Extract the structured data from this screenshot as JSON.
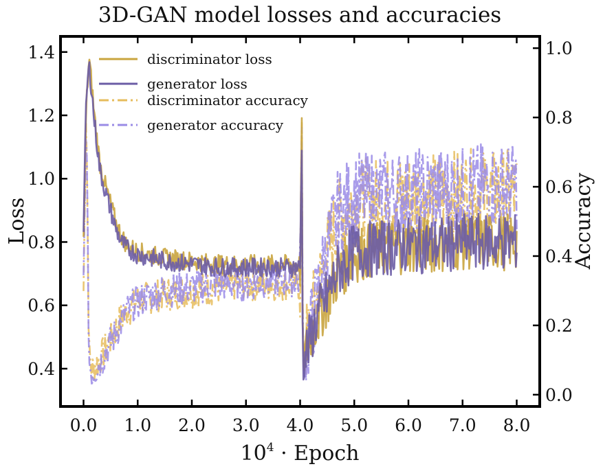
{
  "chart_data": {
    "type": "line",
    "title": "3D-GAN model losses and accuracies",
    "xlabel": {
      "base": "10",
      "exponent": "4",
      "rest": " · Epoch"
    },
    "ylabel_left": "Loss",
    "ylabel_right": "Accuracy",
    "xlim": [
      -0.4,
      8.4
    ],
    "ylim_left": [
      0.285,
      1.445
    ],
    "ylim_right": [
      -0.03,
      1.03
    ],
    "xticks": [
      0.0,
      1.0,
      2.0,
      3.0,
      4.0,
      5.0,
      6.0,
      7.0,
      8.0
    ],
    "xtick_labels": [
      "0.0",
      "1.0",
      "2.0",
      "3.0",
      "4.0",
      "5.0",
      "6.0",
      "7.0",
      "8.0"
    ],
    "yticks_left": [
      0.4,
      0.6,
      0.8,
      1.0,
      1.2,
      1.4
    ],
    "ytick_labels_left": [
      "0.4",
      "0.6",
      "0.8",
      "1.0",
      "1.2",
      "1.4"
    ],
    "yticks_right": [
      0.0,
      0.2,
      0.4,
      0.6,
      0.8,
      1.0
    ],
    "ytick_labels_right": [
      "0.0",
      "0.2",
      "0.4",
      "0.6",
      "0.8",
      "1.0"
    ],
    "grid": false,
    "legend_position": "top-left",
    "series": [
      {
        "name": "discriminator loss",
        "axis": "left",
        "style": "solid",
        "color": "#c9a43e",
        "x": [
          0.0,
          0.05,
          0.1,
          0.15,
          0.2,
          0.3,
          0.4,
          0.5,
          0.6,
          0.7,
          0.8,
          1.0,
          1.5,
          2.0,
          2.5,
          3.0,
          3.5,
          3.9,
          4.0,
          4.03,
          4.05,
          4.1,
          4.2,
          4.3,
          4.5,
          4.7,
          5.0,
          5.5,
          6.0,
          6.5,
          7.0,
          7.5,
          8.0
        ],
        "y": [
          0.8,
          1.22,
          1.38,
          1.3,
          1.2,
          1.05,
          0.98,
          0.92,
          0.86,
          0.82,
          0.79,
          0.77,
          0.75,
          0.74,
          0.73,
          0.73,
          0.73,
          0.73,
          0.73,
          1.18,
          0.4,
          0.45,
          0.5,
          0.55,
          0.62,
          0.7,
          0.76,
          0.78,
          0.79,
          0.79,
          0.8,
          0.8,
          0.8
        ]
      },
      {
        "name": "generator loss",
        "axis": "left",
        "style": "solid",
        "color": "#6b5ca5",
        "x": [
          0.0,
          0.05,
          0.1,
          0.15,
          0.2,
          0.3,
          0.4,
          0.5,
          0.6,
          0.7,
          0.8,
          1.0,
          1.5,
          2.0,
          2.5,
          3.0,
          3.5,
          3.9,
          4.0,
          4.03,
          4.05,
          4.1,
          4.2,
          4.3,
          4.5,
          4.7,
          5.0,
          5.5,
          6.0,
          6.5,
          7.0,
          7.5,
          8.0
        ],
        "y": [
          0.85,
          1.25,
          1.36,
          1.28,
          1.18,
          1.03,
          0.96,
          0.9,
          0.84,
          0.8,
          0.78,
          0.76,
          0.74,
          0.73,
          0.72,
          0.72,
          0.72,
          0.72,
          0.72,
          1.15,
          0.38,
          0.44,
          0.5,
          0.56,
          0.63,
          0.71,
          0.77,
          0.78,
          0.79,
          0.79,
          0.8,
          0.8,
          0.8
        ]
      },
      {
        "name": "discriminator accuracy",
        "axis": "right",
        "style": "dashdot",
        "color": "#e6bc5c",
        "x": [
          0.0,
          0.05,
          0.1,
          0.15,
          0.2,
          0.3,
          0.4,
          0.5,
          0.6,
          0.7,
          0.8,
          1.0,
          1.5,
          2.0,
          2.5,
          3.0,
          3.5,
          3.9,
          4.0,
          4.03,
          4.05,
          4.1,
          4.2,
          4.3,
          4.5,
          4.7,
          5.0,
          5.5,
          6.0,
          6.5,
          7.0,
          7.5,
          8.0
        ],
        "y": [
          0.3,
          0.85,
          0.12,
          0.07,
          0.08,
          0.1,
          0.13,
          0.16,
          0.19,
          0.22,
          0.24,
          0.27,
          0.29,
          0.3,
          0.31,
          0.32,
          0.32,
          0.32,
          0.32,
          0.8,
          0.1,
          0.14,
          0.2,
          0.28,
          0.4,
          0.5,
          0.55,
          0.56,
          0.57,
          0.57,
          0.58,
          0.58,
          0.58
        ]
      },
      {
        "name": "generator accuracy",
        "axis": "right",
        "style": "dashdot",
        "color": "#9a8be6",
        "x": [
          0.0,
          0.05,
          0.1,
          0.15,
          0.2,
          0.3,
          0.4,
          0.5,
          0.6,
          0.7,
          0.8,
          1.0,
          1.5,
          2.0,
          2.5,
          3.0,
          3.5,
          3.9,
          4.0,
          4.03,
          4.05,
          4.1,
          4.2,
          4.3,
          4.5,
          4.7,
          5.0,
          5.5,
          6.0,
          6.5,
          7.0,
          7.5,
          8.0
        ],
        "y": [
          0.32,
          0.82,
          0.1,
          0.06,
          0.07,
          0.09,
          0.12,
          0.15,
          0.18,
          0.21,
          0.24,
          0.27,
          0.3,
          0.31,
          0.32,
          0.32,
          0.33,
          0.33,
          0.33,
          0.78,
          0.09,
          0.13,
          0.19,
          0.27,
          0.42,
          0.52,
          0.57,
          0.58,
          0.58,
          0.59,
          0.59,
          0.6,
          0.6
        ]
      }
    ]
  }
}
